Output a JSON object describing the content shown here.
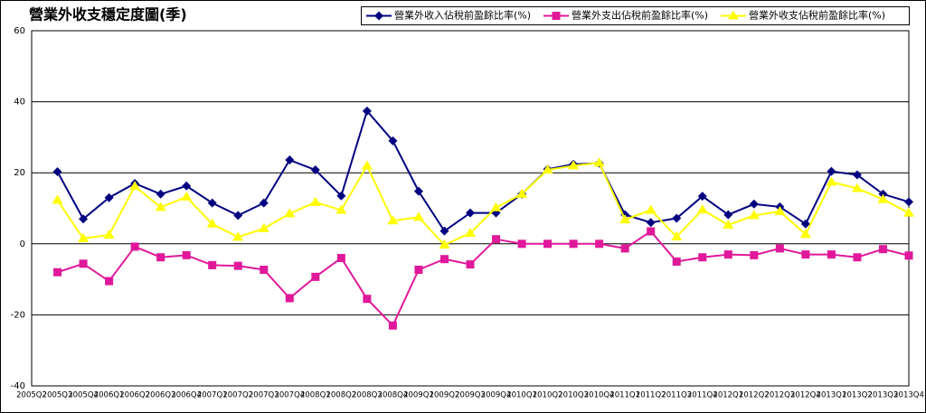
{
  "chart_data": {
    "type": "line",
    "title": "營業外收支穩定度圖(季)",
    "categories": [
      "2005Q2",
      "2005Q3",
      "2005Q4",
      "2006Q1",
      "2006Q2",
      "2006Q3",
      "2006Q4",
      "2007Q1",
      "2007Q2",
      "2007Q3",
      "2007Q4",
      "2008Q1",
      "2008Q2",
      "2008Q3",
      "2008Q4",
      "2009Q1",
      "2009Q2",
      "2009Q3",
      "2009Q4",
      "2010Q1",
      "2010Q2",
      "2010Q3",
      "2010Q4",
      "2011Q1",
      "2011Q2",
      "2011Q3",
      "2011Q4",
      "2012Q1",
      "2012Q2",
      "2012Q3",
      "2012Q4",
      "2013Q1",
      "2013Q2",
      "2013Q3",
      "2013Q4"
    ],
    "series": [
      {
        "name": "營業外收入佔稅前盈餘比率(%)",
        "color": "#000080",
        "marker": "diamond",
        "values": [
          null,
          20.3,
          7,
          13,
          17,
          14,
          16.3,
          11.5,
          8,
          11.5,
          23.6,
          20.8,
          13.5,
          37.4,
          29,
          14.8,
          3.6,
          8.7,
          8.7,
          14,
          21,
          22.4,
          22.7,
          8.2,
          6,
          7.2,
          13.4,
          8.2,
          11.2,
          10.4,
          5.6,
          20.4,
          19.4,
          14,
          11.8
        ]
      },
      {
        "name": "營業外支出佔稅前盈餘比率(%)",
        "color": "#e0189a",
        "marker": "square",
        "values": [
          null,
          -8,
          -5.6,
          -10.5,
          -0.8,
          -3.8,
          -3.2,
          -6,
          -6.2,
          -7.3,
          -15.3,
          -9.3,
          -4,
          -15.5,
          -23,
          -7.3,
          -4.3,
          -5.8,
          1.3,
          0,
          0,
          0,
          0,
          -1.3,
          3.5,
          -5,
          -3.8,
          -3,
          -3.2,
          -1.3,
          -3,
          -3,
          -3.8,
          -1.5,
          -3.3
        ]
      },
      {
        "name": "營業外收支佔稅前盈餘比率(%)",
        "color": "#ffff00",
        "marker": "triangle",
        "values": [
          null,
          12.3,
          1.5,
          2.5,
          16.2,
          10.3,
          13.2,
          5.6,
          1.9,
          4.3,
          8.5,
          11.7,
          9.5,
          22,
          6.5,
          7.5,
          -0.3,
          3,
          10.2,
          14,
          20.8,
          22,
          22.8,
          6.8,
          9.5,
          2,
          9.6,
          5.3,
          8,
          9.1,
          2.7,
          17.4,
          15.6,
          12.5,
          8.7
        ]
      }
    ],
    "ylim": [
      -40,
      60
    ],
    "yticks": [
      -40,
      -20,
      0,
      20,
      40,
      60
    ],
    "grid": true,
    "legend": "top-right"
  }
}
